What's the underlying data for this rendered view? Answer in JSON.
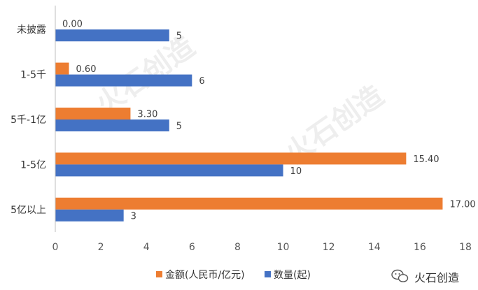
{
  "chart_data": {
    "type": "bar",
    "orientation": "horizontal",
    "categories": [
      "未披露",
      "1-5千",
      "5千-1亿",
      "1-5亿",
      "5亿以上"
    ],
    "series": [
      {
        "name": "金额(人民币/亿元)",
        "color": "#ED7D31",
        "values": [
          0.0,
          0.6,
          3.3,
          15.4,
          17.0
        ],
        "labels": [
          "0.00",
          "0.60",
          "3.30",
          "15.40",
          "17.00"
        ]
      },
      {
        "name": "数量(起)",
        "color": "#4472C4",
        "values": [
          5,
          6,
          5,
          10,
          3
        ],
        "labels": [
          "5",
          "6",
          "5",
          "10",
          "3"
        ]
      }
    ],
    "xlim": [
      0,
      18
    ],
    "xticks": [
      0,
      2,
      4,
      6,
      8,
      10,
      12,
      14,
      16,
      18
    ],
    "grid": false,
    "legend_position": "bottom"
  },
  "branding": {
    "watermark_text": "火石创造",
    "logo_text": "火石创造",
    "logo_icon": "wechat-icon"
  }
}
